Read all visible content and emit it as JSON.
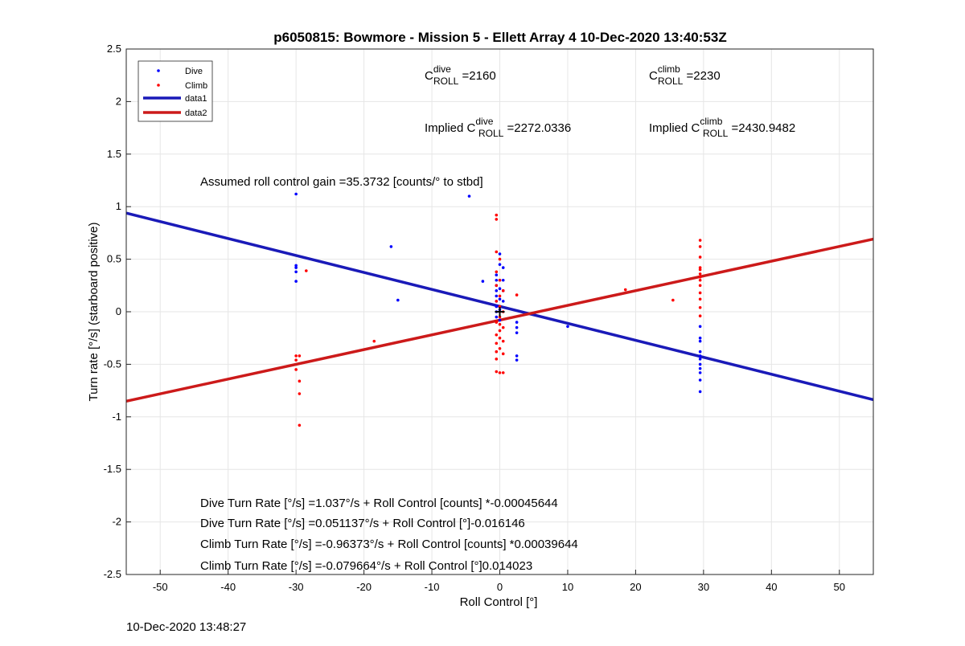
{
  "footer": {
    "timestamp": "10-Dec-2020 13:48:27"
  },
  "colors": {
    "dive": "#0000ff",
    "climb": "#ff0000",
    "dive_fit": "#1a1ab8",
    "climb_fit": "#cc1a1a",
    "grid": "#e6e6e6",
    "axis": "#262626"
  },
  "chart_data": {
    "type": "scatter",
    "title": "p6050815: Bowmore - Mission 5 - Ellett Array 4 10-Dec-2020 13:40:53Z",
    "xlabel": "Roll Control [°]",
    "ylabel": "Turn rate [°/s] (starboard positive)",
    "xlim": [
      -55,
      55
    ],
    "ylim": [
      -2.5,
      2.5
    ],
    "xticks": [
      -50,
      -40,
      -30,
      -20,
      -10,
      0,
      10,
      20,
      30,
      40,
      50
    ],
    "yticks": [
      -2.5,
      -2,
      -1.5,
      -1,
      -0.5,
      0,
      0.5,
      1,
      1.5,
      2,
      2.5
    ],
    "grid": true,
    "legend": {
      "placement": "top-left",
      "entries": [
        {
          "label": "Dive",
          "kind": "marker",
          "color": "#0000ff"
        },
        {
          "label": "Climb",
          "kind": "marker",
          "color": "#ff0000"
        },
        {
          "label": "data1",
          "kind": "line",
          "color": "#1a1ab8"
        },
        {
          "label": "data2",
          "kind": "line",
          "color": "#cc1a1a"
        }
      ]
    },
    "series": [
      {
        "name": "Dive",
        "color": "#0000ff",
        "points": [
          [
            -30,
            1.12
          ],
          [
            -30,
            0.44
          ],
          [
            -30,
            0.42
          ],
          [
            -30,
            0.38
          ],
          [
            -30,
            0.29
          ],
          [
            -16,
            0.62
          ],
          [
            -15,
            0.11
          ],
          [
            -4.5,
            1.1
          ],
          [
            -2.5,
            0.29
          ],
          [
            -0.5,
            0.35
          ],
          [
            -0.5,
            0.3
          ],
          [
            -0.5,
            0.25
          ],
          [
            -0.5,
            0.2
          ],
          [
            -0.5,
            0.15
          ],
          [
            -0.5,
            0.1
          ],
          [
            -0.5,
            0.05
          ],
          [
            -0.5,
            0.0
          ],
          [
            -0.5,
            -0.05
          ],
          [
            0,
            0.55
          ],
          [
            0,
            0.45
          ],
          [
            0,
            0.3
          ],
          [
            0,
            0.22
          ],
          [
            0,
            0.12
          ],
          [
            0,
            0.02
          ],
          [
            0,
            -0.08
          ],
          [
            0.5,
            0.42
          ],
          [
            0.5,
            0.3
          ],
          [
            0.5,
            0.2
          ],
          [
            0.5,
            0.1
          ],
          [
            2.5,
            -0.1
          ],
          [
            2.5,
            -0.15
          ],
          [
            2.5,
            -0.2
          ],
          [
            2.5,
            -0.42
          ],
          [
            2.5,
            -0.46
          ],
          [
            10,
            -0.14
          ],
          [
            29.5,
            -0.14
          ],
          [
            29.5,
            -0.25
          ],
          [
            29.5,
            -0.28
          ],
          [
            29.5,
            -0.38
          ],
          [
            29.5,
            -0.42
          ],
          [
            29.5,
            -0.45
          ],
          [
            29.5,
            -0.5
          ],
          [
            29.5,
            -0.54
          ],
          [
            29.5,
            -0.58
          ],
          [
            29.5,
            -0.65
          ],
          [
            29.5,
            -0.76
          ]
        ]
      },
      {
        "name": "Climb",
        "color": "#ff0000",
        "points": [
          [
            -30,
            -0.42
          ],
          [
            -30,
            -0.46
          ],
          [
            -30,
            -0.55
          ],
          [
            -29.5,
            -0.42
          ],
          [
            -29.5,
            -0.66
          ],
          [
            -29.5,
            -0.78
          ],
          [
            -29.5,
            -1.08
          ],
          [
            -28.5,
            0.39
          ],
          [
            -18.5,
            -0.28
          ],
          [
            -0.5,
            0.92
          ],
          [
            -0.5,
            0.88
          ],
          [
            -0.5,
            0.57
          ],
          [
            -0.5,
            0.38
          ],
          [
            -0.5,
            0.25
          ],
          [
            -0.5,
            0.1
          ],
          [
            -0.5,
            -0.1
          ],
          [
            -0.5,
            -0.22
          ],
          [
            -0.5,
            -0.3
          ],
          [
            -0.5,
            -0.38
          ],
          [
            -0.5,
            -0.45
          ],
          [
            -0.5,
            -0.57
          ],
          [
            0,
            0.5
          ],
          [
            0,
            0.3
          ],
          [
            0,
            0.15
          ],
          [
            0,
            0.05
          ],
          [
            0,
            -0.05
          ],
          [
            0,
            -0.12
          ],
          [
            0,
            -0.18
          ],
          [
            0,
            -0.25
          ],
          [
            0,
            -0.35
          ],
          [
            0,
            -0.58
          ],
          [
            0.5,
            0.2
          ],
          [
            0.5,
            0.0
          ],
          [
            0.5,
            -0.15
          ],
          [
            0.5,
            -0.28
          ],
          [
            0.5,
            -0.4
          ],
          [
            0.5,
            -0.58
          ],
          [
            2.5,
            0.16
          ],
          [
            18.5,
            0.21
          ],
          [
            25.5,
            0.11
          ],
          [
            29.5,
            0.68
          ],
          [
            29.5,
            0.62
          ],
          [
            29.5,
            0.52
          ],
          [
            29.5,
            0.42
          ],
          [
            29.5,
            0.4
          ],
          [
            29.5,
            0.36
          ],
          [
            29.5,
            0.33
          ],
          [
            29.5,
            0.3
          ],
          [
            29.5,
            0.25
          ],
          [
            29.5,
            0.18
          ],
          [
            29.5,
            0.12
          ],
          [
            29.5,
            0.04
          ],
          [
            29.5,
            -0.04
          ]
        ]
      }
    ],
    "fits": [
      {
        "name": "data1",
        "color": "#1a1ab8",
        "slope": -0.016146,
        "intercept": 0.051137
      },
      {
        "name": "data2",
        "color": "#cc1a1a",
        "slope": 0.014023,
        "intercept": -0.079664
      }
    ],
    "origin_marker": {
      "x": 0,
      "y": 0
    },
    "annotations": {
      "c_dive": {
        "base": "C",
        "sup": "dive",
        "sub": "ROLL",
        "value": " =2160"
      },
      "c_climb": {
        "base": "C",
        "sup": "climb",
        "sub": "ROLL",
        "value": " =2230"
      },
      "implied_dive": {
        "prefix": "Implied C",
        "sup": "dive",
        "sub": "ROLL",
        "value": " =2272.0336"
      },
      "implied_climb": {
        "prefix": "Implied C",
        "sup": "climb",
        "sub": "ROLL",
        "value": " =2430.9482"
      },
      "gain": "Assumed roll control gain =35.3732 [counts/° to stbd]",
      "equations": [
        "Dive Turn Rate [°/s] =1.037°/s + Roll Control [counts] *-0.00045644",
        "Dive Turn Rate [°/s] =0.051137°/s + Roll Control [°]-0.016146",
        "Climb Turn Rate [°/s] =-0.96373°/s + Roll Control [counts] *0.00039644",
        "Climb Turn Rate [°/s] =-0.079664°/s + Roll Control [°]0.014023"
      ]
    }
  }
}
